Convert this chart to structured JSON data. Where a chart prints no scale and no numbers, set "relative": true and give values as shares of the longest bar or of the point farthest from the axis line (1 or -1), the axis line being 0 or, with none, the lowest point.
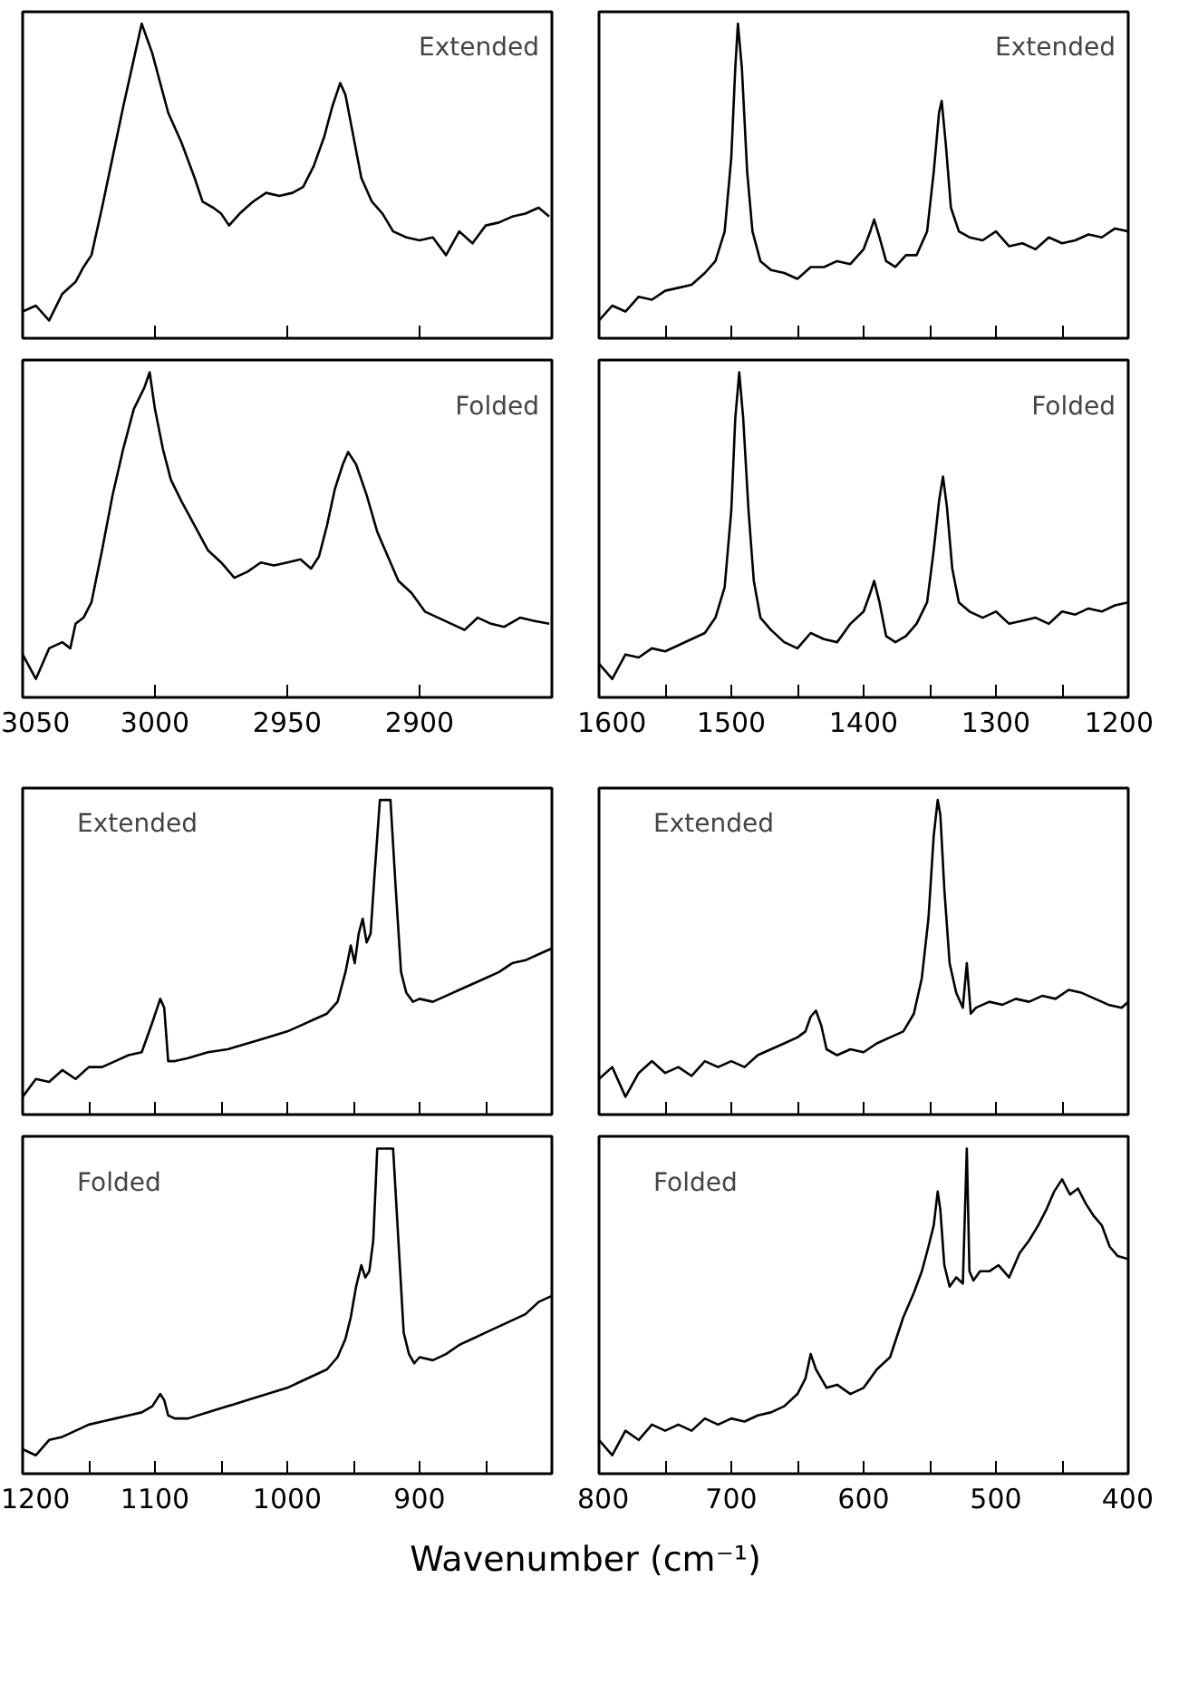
{
  "chart_data": [
    {
      "type": "line",
      "relative": true,
      "annotations": [
        "Extended"
      ],
      "xlim": [
        3050,
        2850
      ],
      "xticks": [
        {
          "value": 3000,
          "label": null
        },
        {
          "value": 2950,
          "label": null
        },
        {
          "value": 2900,
          "label": null
        }
      ],
      "tick_labels": false,
      "x": [
        3050,
        3045,
        3040,
        3035,
        3030,
        3027,
        3024,
        3020,
        3016,
        3012,
        3008,
        3005,
        3003,
        3001,
        2998,
        2995,
        2990,
        2985,
        2982,
        2978,
        2975,
        2972,
        2968,
        2963,
        2958,
        2953,
        2948,
        2944,
        2940,
        2936,
        2933,
        2930,
        2928,
        2925,
        2922,
        2918,
        2914,
        2910,
        2905,
        2900,
        2895,
        2890,
        2885,
        2880,
        2875,
        2870,
        2865,
        2860,
        2855,
        2851
      ],
      "series": [
        {
          "color": "#000000",
          "values": [
            0.03,
            0.05,
            0,
            0.09,
            0.13,
            0.18,
            0.22,
            0.38,
            0.55,
            0.72,
            0.88,
            1.0,
            0.95,
            0.9,
            0.8,
            0.7,
            0.6,
            0.48,
            0.4,
            0.38,
            0.36,
            0.32,
            0.36,
            0.4,
            0.43,
            0.42,
            0.43,
            0.45,
            0.52,
            0.62,
            0.72,
            0.8,
            0.76,
            0.62,
            0.48,
            0.4,
            0.36,
            0.3,
            0.28,
            0.27,
            0.28,
            0.22,
            0.3,
            0.26,
            0.32,
            0.33,
            0.35,
            0.36,
            0.38,
            0.35
          ]
        }
      ]
    },
    {
      "type": "line",
      "relative": true,
      "annotations": [
        "Extended"
      ],
      "xlim": [
        1600,
        1200
      ],
      "xticks": [
        {
          "value": 1550,
          "label": null
        },
        {
          "value": 1500,
          "label": null
        },
        {
          "value": 1450,
          "label": null
        },
        {
          "value": 1400,
          "label": null
        },
        {
          "value": 1350,
          "label": null
        },
        {
          "value": 1300,
          "label": null
        },
        {
          "value": 1250,
          "label": null
        }
      ],
      "tick_labels": false,
      "x": [
        1600,
        1590,
        1580,
        1570,
        1560,
        1550,
        1540,
        1530,
        1520,
        1512,
        1505,
        1500,
        1497,
        1495,
        1492,
        1488,
        1484,
        1478,
        1470,
        1460,
        1450,
        1440,
        1430,
        1420,
        1410,
        1400,
        1395,
        1392,
        1388,
        1383,
        1376,
        1368,
        1360,
        1352,
        1347,
        1343,
        1341,
        1338,
        1334,
        1328,
        1320,
        1310,
        1300,
        1290,
        1280,
        1270,
        1260,
        1250,
        1240,
        1230,
        1220,
        1210,
        1200
      ],
      "series": [
        {
          "color": "#000000",
          "values": [
            0,
            0.05,
            0.03,
            0.08,
            0.07,
            0.1,
            0.11,
            0.12,
            0.16,
            0.2,
            0.3,
            0.55,
            0.85,
            1.0,
            0.85,
            0.5,
            0.3,
            0.2,
            0.17,
            0.16,
            0.14,
            0.18,
            0.18,
            0.2,
            0.19,
            0.24,
            0.3,
            0.34,
            0.28,
            0.2,
            0.18,
            0.22,
            0.22,
            0.3,
            0.5,
            0.7,
            0.74,
            0.6,
            0.38,
            0.3,
            0.28,
            0.27,
            0.3,
            0.25,
            0.26,
            0.24,
            0.28,
            0.26,
            0.27,
            0.29,
            0.28,
            0.31,
            0.3
          ]
        }
      ]
    },
    {
      "type": "line",
      "relative": true,
      "annotations": [
        "Folded"
      ],
      "xlim": [
        3050,
        2850
      ],
      "xticks": [
        3050,
        3000,
        2950,
        2900
      ],
      "tick_labels": "x",
      "x": [
        3050,
        3045,
        3040,
        3035,
        3032,
        3030,
        3027,
        3024,
        3020,
        3016,
        3012,
        3008,
        3004,
        3002,
        3000,
        2997,
        2994,
        2990,
        2985,
        2980,
        2975,
        2970,
        2965,
        2960,
        2955,
        2950,
        2945,
        2941,
        2938,
        2935,
        2932,
        2929,
        2927,
        2924,
        2920,
        2916,
        2912,
        2908,
        2903,
        2898,
        2893,
        2888,
        2883,
        2878,
        2873,
        2868,
        2862,
        2857,
        2851
      ],
      "series": [
        {
          "color": "#000000",
          "values": [
            0.08,
            0,
            0.1,
            0.12,
            0.1,
            0.18,
            0.2,
            0.25,
            0.42,
            0.6,
            0.75,
            0.88,
            0.95,
            1.0,
            0.88,
            0.75,
            0.65,
            0.58,
            0.5,
            0.42,
            0.38,
            0.33,
            0.35,
            0.38,
            0.37,
            0.38,
            0.39,
            0.36,
            0.4,
            0.5,
            0.62,
            0.7,
            0.74,
            0.7,
            0.6,
            0.48,
            0.4,
            0.32,
            0.28,
            0.22,
            0.2,
            0.18,
            0.16,
            0.2,
            0.18,
            0.17,
            0.2,
            0.19,
            0.18
          ]
        }
      ]
    },
    {
      "type": "line",
      "relative": true,
      "annotations": [
        "Folded"
      ],
      "xlim": [
        1600,
        1200
      ],
      "xticks": [
        1600,
        {
          "value": 1550,
          "label": null
        },
        1500,
        {
          "value": 1450,
          "label": null
        },
        1400,
        {
          "value": 1350,
          "label": null
        },
        1300,
        {
          "value": 1250,
          "label": null
        },
        1200
      ],
      "tick_labels": "x",
      "x": [
        1600,
        1590,
        1580,
        1570,
        1560,
        1550,
        1540,
        1530,
        1520,
        1512,
        1505,
        1500,
        1497,
        1494,
        1491,
        1487,
        1483,
        1478,
        1470,
        1460,
        1450,
        1440,
        1430,
        1420,
        1410,
        1400,
        1395,
        1392,
        1388,
        1383,
        1376,
        1368,
        1360,
        1352,
        1347,
        1343,
        1340,
        1337,
        1333,
        1328,
        1320,
        1310,
        1300,
        1290,
        1280,
        1270,
        1260,
        1250,
        1240,
        1230,
        1220,
        1210,
        1200
      ],
      "series": [
        {
          "color": "#000000",
          "values": [
            0.05,
            0,
            0.08,
            0.07,
            0.1,
            0.09,
            0.11,
            0.13,
            0.15,
            0.2,
            0.3,
            0.55,
            0.85,
            1.0,
            0.85,
            0.55,
            0.32,
            0.2,
            0.16,
            0.12,
            0.1,
            0.15,
            0.13,
            0.12,
            0.18,
            0.22,
            0.28,
            0.32,
            0.25,
            0.14,
            0.12,
            0.14,
            0.18,
            0.25,
            0.42,
            0.58,
            0.66,
            0.56,
            0.36,
            0.25,
            0.22,
            0.2,
            0.22,
            0.18,
            0.19,
            0.2,
            0.18,
            0.22,
            0.21,
            0.23,
            0.22,
            0.24,
            0.25
          ]
        }
      ]
    },
    {
      "type": "line",
      "relative": true,
      "annotations": [
        "Extended"
      ],
      "xlim": [
        1200,
        800
      ],
      "xticks": [
        {
          "value": 1150,
          "label": null
        },
        {
          "value": 1100,
          "label": null
        },
        {
          "value": 1050,
          "label": null
        },
        {
          "value": 1000,
          "label": null
        },
        {
          "value": 950,
          "label": null
        },
        {
          "value": 900,
          "label": null
        },
        {
          "value": 850,
          "label": null
        }
      ],
      "tick_labels": false,
      "x": [
        1200,
        1190,
        1180,
        1170,
        1160,
        1150,
        1140,
        1130,
        1120,
        1110,
        1102,
        1096,
        1093,
        1090,
        1085,
        1075,
        1060,
        1045,
        1030,
        1015,
        1000,
        990,
        980,
        970,
        962,
        956,
        952,
        949,
        946,
        943,
        940,
        937,
        934,
        930,
        926,
        922,
        918,
        914,
        910,
        905,
        900,
        890,
        880,
        870,
        860,
        850,
        840,
        830,
        820,
        810,
        800
      ],
      "series": [
        {
          "color": "#000000",
          "values": [
            0,
            0.06,
            0.05,
            0.09,
            0.06,
            0.1,
            0.1,
            0.12,
            0.14,
            0.15,
            0.25,
            0.33,
            0.3,
            0.12,
            0.12,
            0.13,
            0.15,
            0.16,
            0.18,
            0.2,
            0.22,
            0.24,
            0.26,
            0.28,
            0.32,
            0.42,
            0.51,
            0.45,
            0.55,
            0.6,
            0.52,
            0.55,
            0.75,
            1.0,
            1.0,
            1.0,
            0.7,
            0.42,
            0.35,
            0.32,
            0.33,
            0.32,
            0.34,
            0.36,
            0.38,
            0.4,
            0.42,
            0.45,
            0.46,
            0.48,
            0.5
          ]
        }
      ]
    },
    {
      "type": "line",
      "relative": true,
      "annotations": [
        "Extended"
      ],
      "xlim": [
        800,
        400
      ],
      "xticks": [
        {
          "value": 750,
          "label": null
        },
        {
          "value": 700,
          "label": null
        },
        {
          "value": 650,
          "label": null
        },
        {
          "value": 600,
          "label": null
        },
        {
          "value": 550,
          "label": null
        },
        {
          "value": 500,
          "label": null
        },
        {
          "value": 450,
          "label": null
        }
      ],
      "tick_labels": false,
      "x": [
        800,
        790,
        780,
        770,
        760,
        750,
        740,
        730,
        720,
        710,
        700,
        690,
        680,
        670,
        660,
        650,
        644,
        640,
        636,
        632,
        628,
        620,
        610,
        600,
        590,
        580,
        570,
        562,
        556,
        551,
        547,
        544,
        542,
        539,
        535,
        530,
        525,
        522,
        519,
        515,
        505,
        495,
        485,
        475,
        465,
        455,
        445,
        435,
        425,
        415,
        405,
        400
      ],
      "series": [
        {
          "color": "#000000",
          "values": [
            0.06,
            0.1,
            0,
            0.08,
            0.12,
            0.08,
            0.1,
            0.07,
            0.12,
            0.1,
            0.12,
            0.1,
            0.14,
            0.16,
            0.18,
            0.2,
            0.22,
            0.27,
            0.29,
            0.24,
            0.16,
            0.14,
            0.16,
            0.15,
            0.18,
            0.2,
            0.22,
            0.28,
            0.4,
            0.6,
            0.88,
            1.0,
            0.95,
            0.7,
            0.45,
            0.35,
            0.3,
            0.45,
            0.28,
            0.3,
            0.32,
            0.31,
            0.33,
            0.32,
            0.34,
            0.33,
            0.36,
            0.35,
            0.33,
            0.31,
            0.3,
            0.32
          ]
        }
      ]
    },
    {
      "type": "line",
      "relative": true,
      "annotations": [
        "Folded"
      ],
      "xlabel": "Wavenumber (cm⁻¹)",
      "xlim": [
        1200,
        800
      ],
      "xticks": [
        1200,
        {
          "value": 1150,
          "label": null
        },
        1100,
        {
          "value": 1050,
          "label": null
        },
        1000,
        {
          "value": 950,
          "label": null
        },
        900,
        {
          "value": 850,
          "label": null
        }
      ],
      "tick_labels": "x",
      "x": [
        1200,
        1190,
        1180,
        1170,
        1160,
        1150,
        1140,
        1130,
        1120,
        1110,
        1102,
        1096,
        1093,
        1090,
        1085,
        1075,
        1060,
        1045,
        1030,
        1015,
        1000,
        990,
        980,
        970,
        962,
        956,
        952,
        948,
        944,
        941,
        938,
        935,
        932,
        928,
        924,
        920,
        916,
        912,
        908,
        904,
        900,
        890,
        880,
        870,
        860,
        850,
        840,
        830,
        820,
        810,
        800
      ],
      "series": [
        {
          "color": "#000000",
          "values": [
            0.02,
            0.0,
            0.05,
            0.06,
            0.08,
            0.1,
            0.11,
            0.12,
            0.13,
            0.14,
            0.16,
            0.2,
            0.18,
            0.13,
            0.12,
            0.12,
            0.14,
            0.16,
            0.18,
            0.2,
            0.22,
            0.24,
            0.26,
            0.28,
            0.32,
            0.38,
            0.45,
            0.55,
            0.62,
            0.58,
            0.6,
            0.7,
            1.0,
            1.0,
            1.0,
            1.0,
            0.7,
            0.4,
            0.33,
            0.3,
            0.32,
            0.31,
            0.33,
            0.36,
            0.38,
            0.4,
            0.42,
            0.44,
            0.46,
            0.5,
            0.52
          ]
        }
      ]
    },
    {
      "type": "line",
      "relative": true,
      "annotations": [
        "Folded"
      ],
      "xlim": [
        800,
        400
      ],
      "xticks": [
        800,
        {
          "value": 750,
          "label": null
        },
        700,
        {
          "value": 650,
          "label": null
        },
        600,
        {
          "value": 550,
          "label": null
        },
        500,
        {
          "value": 450,
          "label": null
        },
        400
      ],
      "tick_labels": "x",
      "x": [
        800,
        790,
        780,
        770,
        760,
        750,
        740,
        730,
        720,
        710,
        700,
        690,
        680,
        670,
        660,
        650,
        644,
        640,
        636,
        632,
        628,
        620,
        610,
        600,
        590,
        580,
        570,
        562,
        556,
        551,
        547,
        544,
        542,
        539,
        535,
        530,
        525,
        522,
        520,
        517,
        512,
        505,
        498,
        490,
        482,
        475,
        468,
        462,
        456,
        450,
        444,
        438,
        432,
        426,
        420,
        414,
        408,
        400
      ],
      "series": [
        {
          "color": "#000000",
          "values": [
            0.05,
            0,
            0.08,
            0.05,
            0.1,
            0.08,
            0.1,
            0.08,
            0.12,
            0.1,
            0.12,
            0.11,
            0.13,
            0.14,
            0.16,
            0.2,
            0.25,
            0.33,
            0.28,
            0.25,
            0.22,
            0.23,
            0.2,
            0.22,
            0.28,
            0.32,
            0.45,
            0.53,
            0.6,
            0.68,
            0.75,
            0.86,
            0.8,
            0.62,
            0.55,
            0.58,
            0.56,
            1.0,
            0.6,
            0.57,
            0.6,
            0.6,
            0.62,
            0.58,
            0.66,
            0.7,
            0.75,
            0.8,
            0.86,
            0.9,
            0.85,
            0.87,
            0.82,
            0.78,
            0.75,
            0.68,
            0.65,
            0.64
          ]
        }
      ]
    }
  ]
}
